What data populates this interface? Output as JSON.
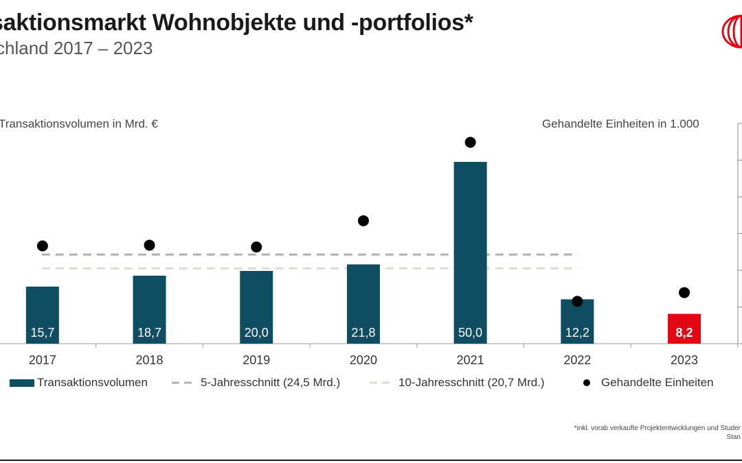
{
  "header": {
    "title": "saktionsmarkt Wohnobjekte und -portfolios*",
    "subtitle": "chland 2017 – 2023"
  },
  "brand": {
    "logo_icon": "jll-logo-icon",
    "color": "#e30613"
  },
  "chart_data": {
    "type": "bar",
    "categories": [
      "2017",
      "2018",
      "2019",
      "2020",
      "2021",
      "2022",
      "2023"
    ],
    "series": [
      {
        "name": "Transaktionsvolumen",
        "values": [
          15.7,
          18.7,
          20.0,
          21.8,
          50.0,
          12.2,
          8.2
        ],
        "labels": [
          "15,7",
          "18,7",
          "20,0",
          "21,8",
          "50,0",
          "12,2",
          "8,2"
        ],
        "color": "#0f4d63",
        "highlight_color": "#e30613",
        "highlight_index": 6
      },
      {
        "name": "Gehandelte Einheiten",
        "type": "scatter",
        "values_relative": [
          26.8,
          27.0,
          26.5,
          33.7,
          55.2,
          11.6,
          14.0
        ],
        "color": "#000000"
      }
    ],
    "reference_lines": [
      {
        "name": "5-Jahresschnitt (24,5 Mrd.)",
        "value": 24.5,
        "color": "#b0b0b0",
        "style": "dashed"
      },
      {
        "name": "10-Jahresschnitt (20,7 Mrd.)",
        "value": 20.7,
        "color": "#dcdcce",
        "style": "dashed"
      }
    ],
    "ylabel": "Transaktionsvolumen in Mrd. €",
    "y2label": "Gehandelte Einheiten in 1.000",
    "ylim": [
      0,
      60
    ],
    "grid": false,
    "legend_position": "bottom"
  },
  "footnote": {
    "line1": "*inkl. vorab verkaufte Projektentwicklungen und Studer",
    "line2": "Stan"
  }
}
